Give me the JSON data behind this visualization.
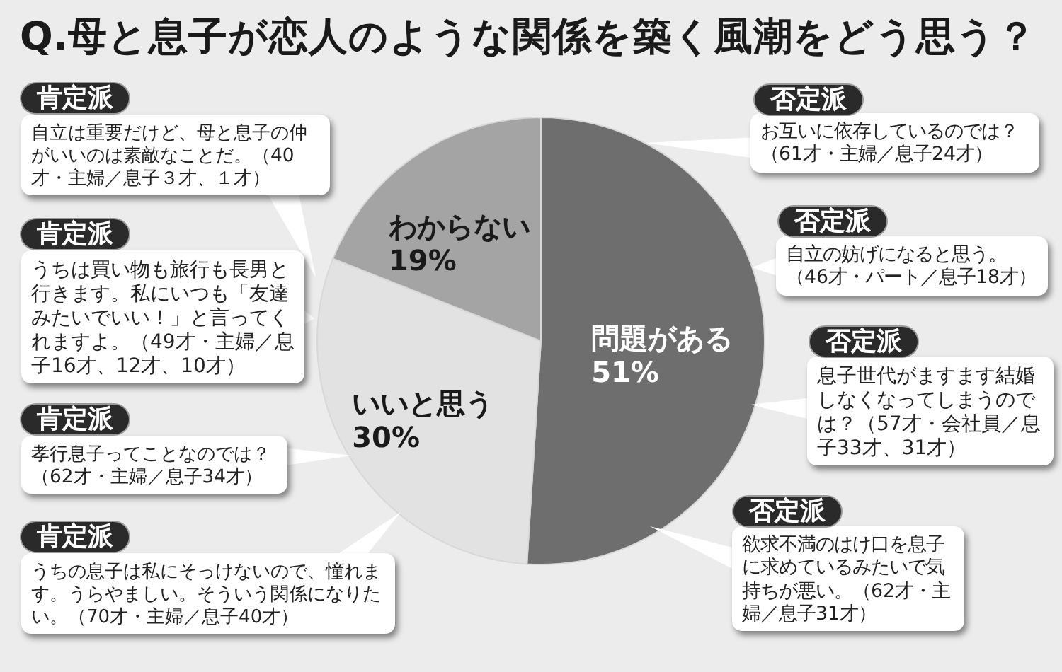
{
  "chart_data": {
    "type": "pie",
    "title": "Q.母と息子が恋人のような関係を築く風潮をどう思う？",
    "categories": [
      "問題がある",
      "いいと思う",
      "わからない"
    ],
    "values": [
      51,
      30,
      19
    ],
    "colors": [
      "#6e6e6e",
      "#e2e2e2",
      "#a4a4a4"
    ],
    "value_labels": [
      "51%",
      "30%",
      "19%"
    ],
    "annotations": [
      "肯定派",
      "自立は重要だけど、母と息子の仲がいいのは素敵なことだ。（40才・主婦／息子３才、１才）",
      "肯定派",
      "うちは買い物も旅行も長男と行きます。私にいつも「友達みたいでいい！」と言ってくれますよ。（49才・主婦／息子16才、12才、10才）",
      "肯定派",
      "孝行息子ってことなのでは？（62才・主婦／息子34才）",
      "肯定派",
      "うちの息子は私にそっけないので、憧れます。うらやましい。そういう関係になりたい。（70才・主婦／息子40才）",
      "否定派",
      "お互いに依存しているのでは？（61才・主婦／息子24才）",
      "否定派",
      "自立の妨げになると思う。（46才・パート／息子18才）",
      "否定派",
      "息子世代がますます結婚しなくなってしまうのでは？（57才・会社員／息子33才、31才）",
      "否定派",
      "欲求不満のはけ口を息子に求めているみたいで気持ちが悪い。（62才・主婦／息子31才）"
    ]
  }
}
